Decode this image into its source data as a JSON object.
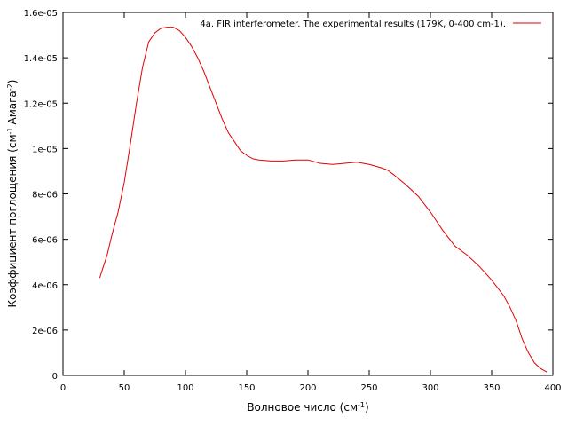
{
  "chart_data": {
    "type": "line",
    "title": "",
    "xlabel": {
      "main": "Волновое число (см",
      "sup": "-1",
      "tail": ")"
    },
    "ylabel": {
      "p1": "Коэффициент поглощения (см",
      "s1": "-1",
      "p2": "Амага",
      "s2": "-2",
      "p3": ")"
    },
    "xlim": [
      0,
      400
    ],
    "ylim": [
      0,
      1.6e-05
    ],
    "xticks": [
      0,
      50,
      100,
      150,
      200,
      250,
      300,
      350,
      400
    ],
    "xtick_labels": [
      "0",
      "50",
      "100",
      "150",
      "200",
      "250",
      "300",
      "350",
      "400"
    ],
    "yticks": [
      0,
      2e-06,
      4e-06,
      6e-06,
      8e-06,
      1e-05,
      1.2e-05,
      1.4e-05,
      1.6e-05
    ],
    "ytick_labels": [
      "0",
      "2e-06",
      "4e-06",
      "6e-06",
      "8e-06",
      "1e-05",
      "1.2e-05",
      "1.4e-05",
      "1.6e-05"
    ],
    "grid": false,
    "legend_position": "top-right",
    "series": [
      {
        "name": "4a. FIR interferometer. The experimental  results (179K, 0-400 cm-1).",
        "color": "#e00000",
        "x": [
          30,
          33,
          36,
          40,
          45,
          50,
          55,
          60,
          65,
          70,
          75,
          80,
          85,
          90,
          95,
          100,
          105,
          110,
          115,
          120,
          125,
          130,
          135,
          140,
          145,
          150,
          155,
          160,
          170,
          180,
          190,
          200,
          210,
          220,
          230,
          240,
          250,
          260,
          265,
          270,
          280,
          290,
          300,
          310,
          320,
          330,
          340,
          350,
          360,
          365,
          370,
          375,
          380,
          385,
          390,
          395
        ],
        "y": [
          4.3e-06,
          4.8e-06,
          5.3e-06,
          6.2e-06,
          7.2e-06,
          8.5e-06,
          1.02e-05,
          1.2e-05,
          1.36e-05,
          1.47e-05,
          1.51e-05,
          1.53e-05,
          1.535e-05,
          1.535e-05,
          1.52e-05,
          1.49e-05,
          1.45e-05,
          1.4e-05,
          1.34e-05,
          1.27e-05,
          1.2e-05,
          1.13e-05,
          1.07e-05,
          1.03e-05,
          9.9e-06,
          9.7e-06,
          9.55e-06,
          9.5e-06,
          9.45e-06,
          9.45e-06,
          9.5e-06,
          9.5e-06,
          9.35e-06,
          9.3e-06,
          9.35e-06,
          9.4e-06,
          9.3e-06,
          9.15e-06,
          9.05e-06,
          8.85e-06,
          8.4e-06,
          7.9e-06,
          7.2e-06,
          6.4e-06,
          5.7e-06,
          5.3e-06,
          4.8e-06,
          4.2e-06,
          3.5e-06,
          3e-06,
          2.4e-06,
          1.6e-06,
          1e-06,
          5.5e-07,
          3e-07,
          1.5e-07
        ]
      }
    ]
  }
}
